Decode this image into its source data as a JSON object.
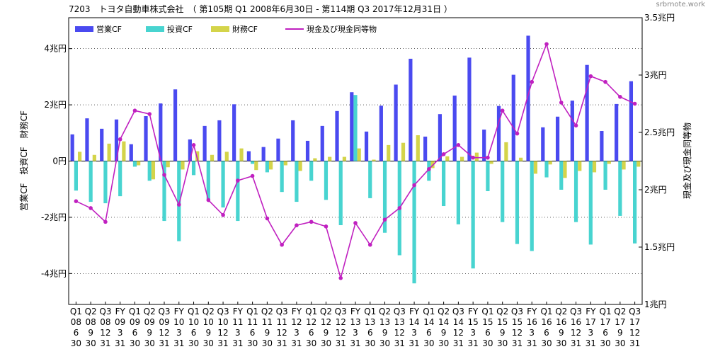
{
  "title": "7203　トヨタ自動車株式会社　（ 第105期 Q1 2008年6月30日 - 第114期 Q3 2017年12月31日 ）",
  "watermark": "srbrnote.work",
  "chart_data": {
    "type": "bar+line",
    "left_axis": {
      "label": "営業CF　投資CF　財務CF",
      "ylim": [
        -5.1,
        5.1
      ],
      "ticks": [
        4,
        2,
        0,
        -2,
        -4
      ],
      "tick_labels": [
        "4兆円",
        "2兆円",
        "0円",
        "-2兆円",
        "-4兆円"
      ]
    },
    "right_axis": {
      "label": "現金及び現金同等物",
      "ylim": [
        1.0,
        3.5
      ],
      "ticks": [
        3.5,
        3.0,
        2.5,
        2.0,
        1.5,
        1.0
      ],
      "tick_labels": [
        "3.5兆円",
        "3兆円",
        "2.5兆円",
        "2兆円",
        "1.5兆円",
        "1兆円"
      ]
    },
    "categories": [
      [
        "Q1",
        "08",
        "6",
        "30"
      ],
      [
        "Q2",
        "08",
        "9",
        "30"
      ],
      [
        "Q3",
        "08",
        "12",
        "31"
      ],
      [
        "FY",
        "09",
        "3",
        "31"
      ],
      [
        "Q1",
        "09",
        "6",
        "30"
      ],
      [
        "Q2",
        "09",
        "9",
        "30"
      ],
      [
        "Q3",
        "09",
        "12",
        "31"
      ],
      [
        "FY",
        "10",
        "3",
        "31"
      ],
      [
        "Q1",
        "10",
        "6",
        "30"
      ],
      [
        "Q2",
        "10",
        "9",
        "30"
      ],
      [
        "Q3",
        "10",
        "12",
        "31"
      ],
      [
        "FY",
        "11",
        "3",
        "31"
      ],
      [
        "Q1",
        "11",
        "6",
        "30"
      ],
      [
        "Q2",
        "11",
        "9",
        "30"
      ],
      [
        "Q3",
        "11",
        "12",
        "31"
      ],
      [
        "FY",
        "12",
        "3",
        "31"
      ],
      [
        "Q1",
        "12",
        "6",
        "30"
      ],
      [
        "Q2",
        "12",
        "9",
        "30"
      ],
      [
        "Q3",
        "12",
        "12",
        "31"
      ],
      [
        "FY",
        "13",
        "3",
        "31"
      ],
      [
        "Q1",
        "13",
        "6",
        "30"
      ],
      [
        "Q2",
        "13",
        "9",
        "30"
      ],
      [
        "Q3",
        "13",
        "12",
        "31"
      ],
      [
        "FY",
        "14",
        "3",
        "31"
      ],
      [
        "Q1",
        "14",
        "6",
        "30"
      ],
      [
        "Q2",
        "14",
        "9",
        "30"
      ],
      [
        "Q3",
        "14",
        "12",
        "31"
      ],
      [
        "FY",
        "15",
        "3",
        "31"
      ],
      [
        "Q1",
        "15",
        "6",
        "30"
      ],
      [
        "Q2",
        "15",
        "9",
        "30"
      ],
      [
        "Q3",
        "15",
        "12",
        "31"
      ],
      [
        "FY",
        "16",
        "3",
        "31"
      ],
      [
        "Q1",
        "16",
        "6",
        "30"
      ],
      [
        "Q2",
        "16",
        "9",
        "30"
      ],
      [
        "Q3",
        "16",
        "12",
        "31"
      ],
      [
        "FY",
        "17",
        "3",
        "31"
      ],
      [
        "Q1",
        "17",
        "6",
        "30"
      ],
      [
        "Q2",
        "17",
        "9",
        "30"
      ],
      [
        "Q3",
        "17",
        "12",
        "31"
      ]
    ],
    "series": [
      {
        "name": "営業CF",
        "color": "#4a4af0",
        "axis": "left",
        "kind": "bar",
        "values": [
          0.95,
          1.52,
          1.15,
          1.48,
          0.6,
          1.6,
          2.05,
          2.55,
          0.77,
          1.25,
          1.45,
          2.02,
          0.35,
          0.5,
          0.8,
          1.45,
          0.72,
          1.25,
          1.78,
          2.45,
          1.05,
          1.97,
          2.72,
          3.64,
          0.87,
          1.67,
          2.33,
          3.68,
          1.12,
          1.96,
          3.07,
          4.46,
          1.2,
          1.58,
          2.15,
          3.42,
          1.07,
          2.03,
          2.84
        ]
      },
      {
        "name": "投資CF",
        "color": "#48d4d0",
        "axis": "left",
        "kind": "bar",
        "values": [
          -1.05,
          -1.45,
          -1.5,
          -1.25,
          -0.2,
          -0.7,
          -2.13,
          -2.85,
          -0.5,
          -1.35,
          -1.65,
          -2.13,
          -0.1,
          -0.4,
          -1.1,
          -1.45,
          -0.7,
          -1.38,
          -2.28,
          2.35,
          -1.32,
          -2.55,
          -3.35,
          -4.35,
          -0.7,
          -1.6,
          -2.25,
          -3.82,
          -1.07,
          -2.17,
          -2.95,
          -3.2,
          -0.58,
          -1.02,
          -2.17,
          -2.97,
          -1.02,
          -1.95,
          -2.93
        ]
      },
      {
        "name": "財務CF",
        "color": "#d4d44a",
        "axis": "left",
        "kind": "bar",
        "values": [
          0.33,
          0.22,
          0.62,
          0.7,
          -0.15,
          -0.65,
          -0.22,
          -0.3,
          0.35,
          0.22,
          0.33,
          0.45,
          -0.32,
          -0.3,
          -0.15,
          -0.35,
          0.1,
          0.15,
          0.15,
          0.45,
          0.05,
          0.57,
          0.65,
          0.92,
          -0.25,
          0.17,
          0.15,
          0.3,
          -0.1,
          0.67,
          0.12,
          -0.45,
          -0.12,
          -0.6,
          -0.35,
          -0.4,
          -0.1,
          -0.3,
          -0.2
        ]
      },
      {
        "name": "現金及び現金同等物",
        "color": "#c020c0",
        "axis": "right",
        "kind": "line",
        "values": [
          1.9,
          1.84,
          1.72,
          2.44,
          2.69,
          2.66,
          2.13,
          1.87,
          2.39,
          1.91,
          1.78,
          2.08,
          2.12,
          1.75,
          1.52,
          1.69,
          1.72,
          1.68,
          1.23,
          1.71,
          1.52,
          1.74,
          1.84,
          2.04,
          2.18,
          2.31,
          2.39,
          2.28,
          2.28,
          2.69,
          2.49,
          2.94,
          3.27,
          2.76,
          2.56,
          2.99,
          2.94,
          2.81,
          2.75
        ]
      }
    ]
  }
}
